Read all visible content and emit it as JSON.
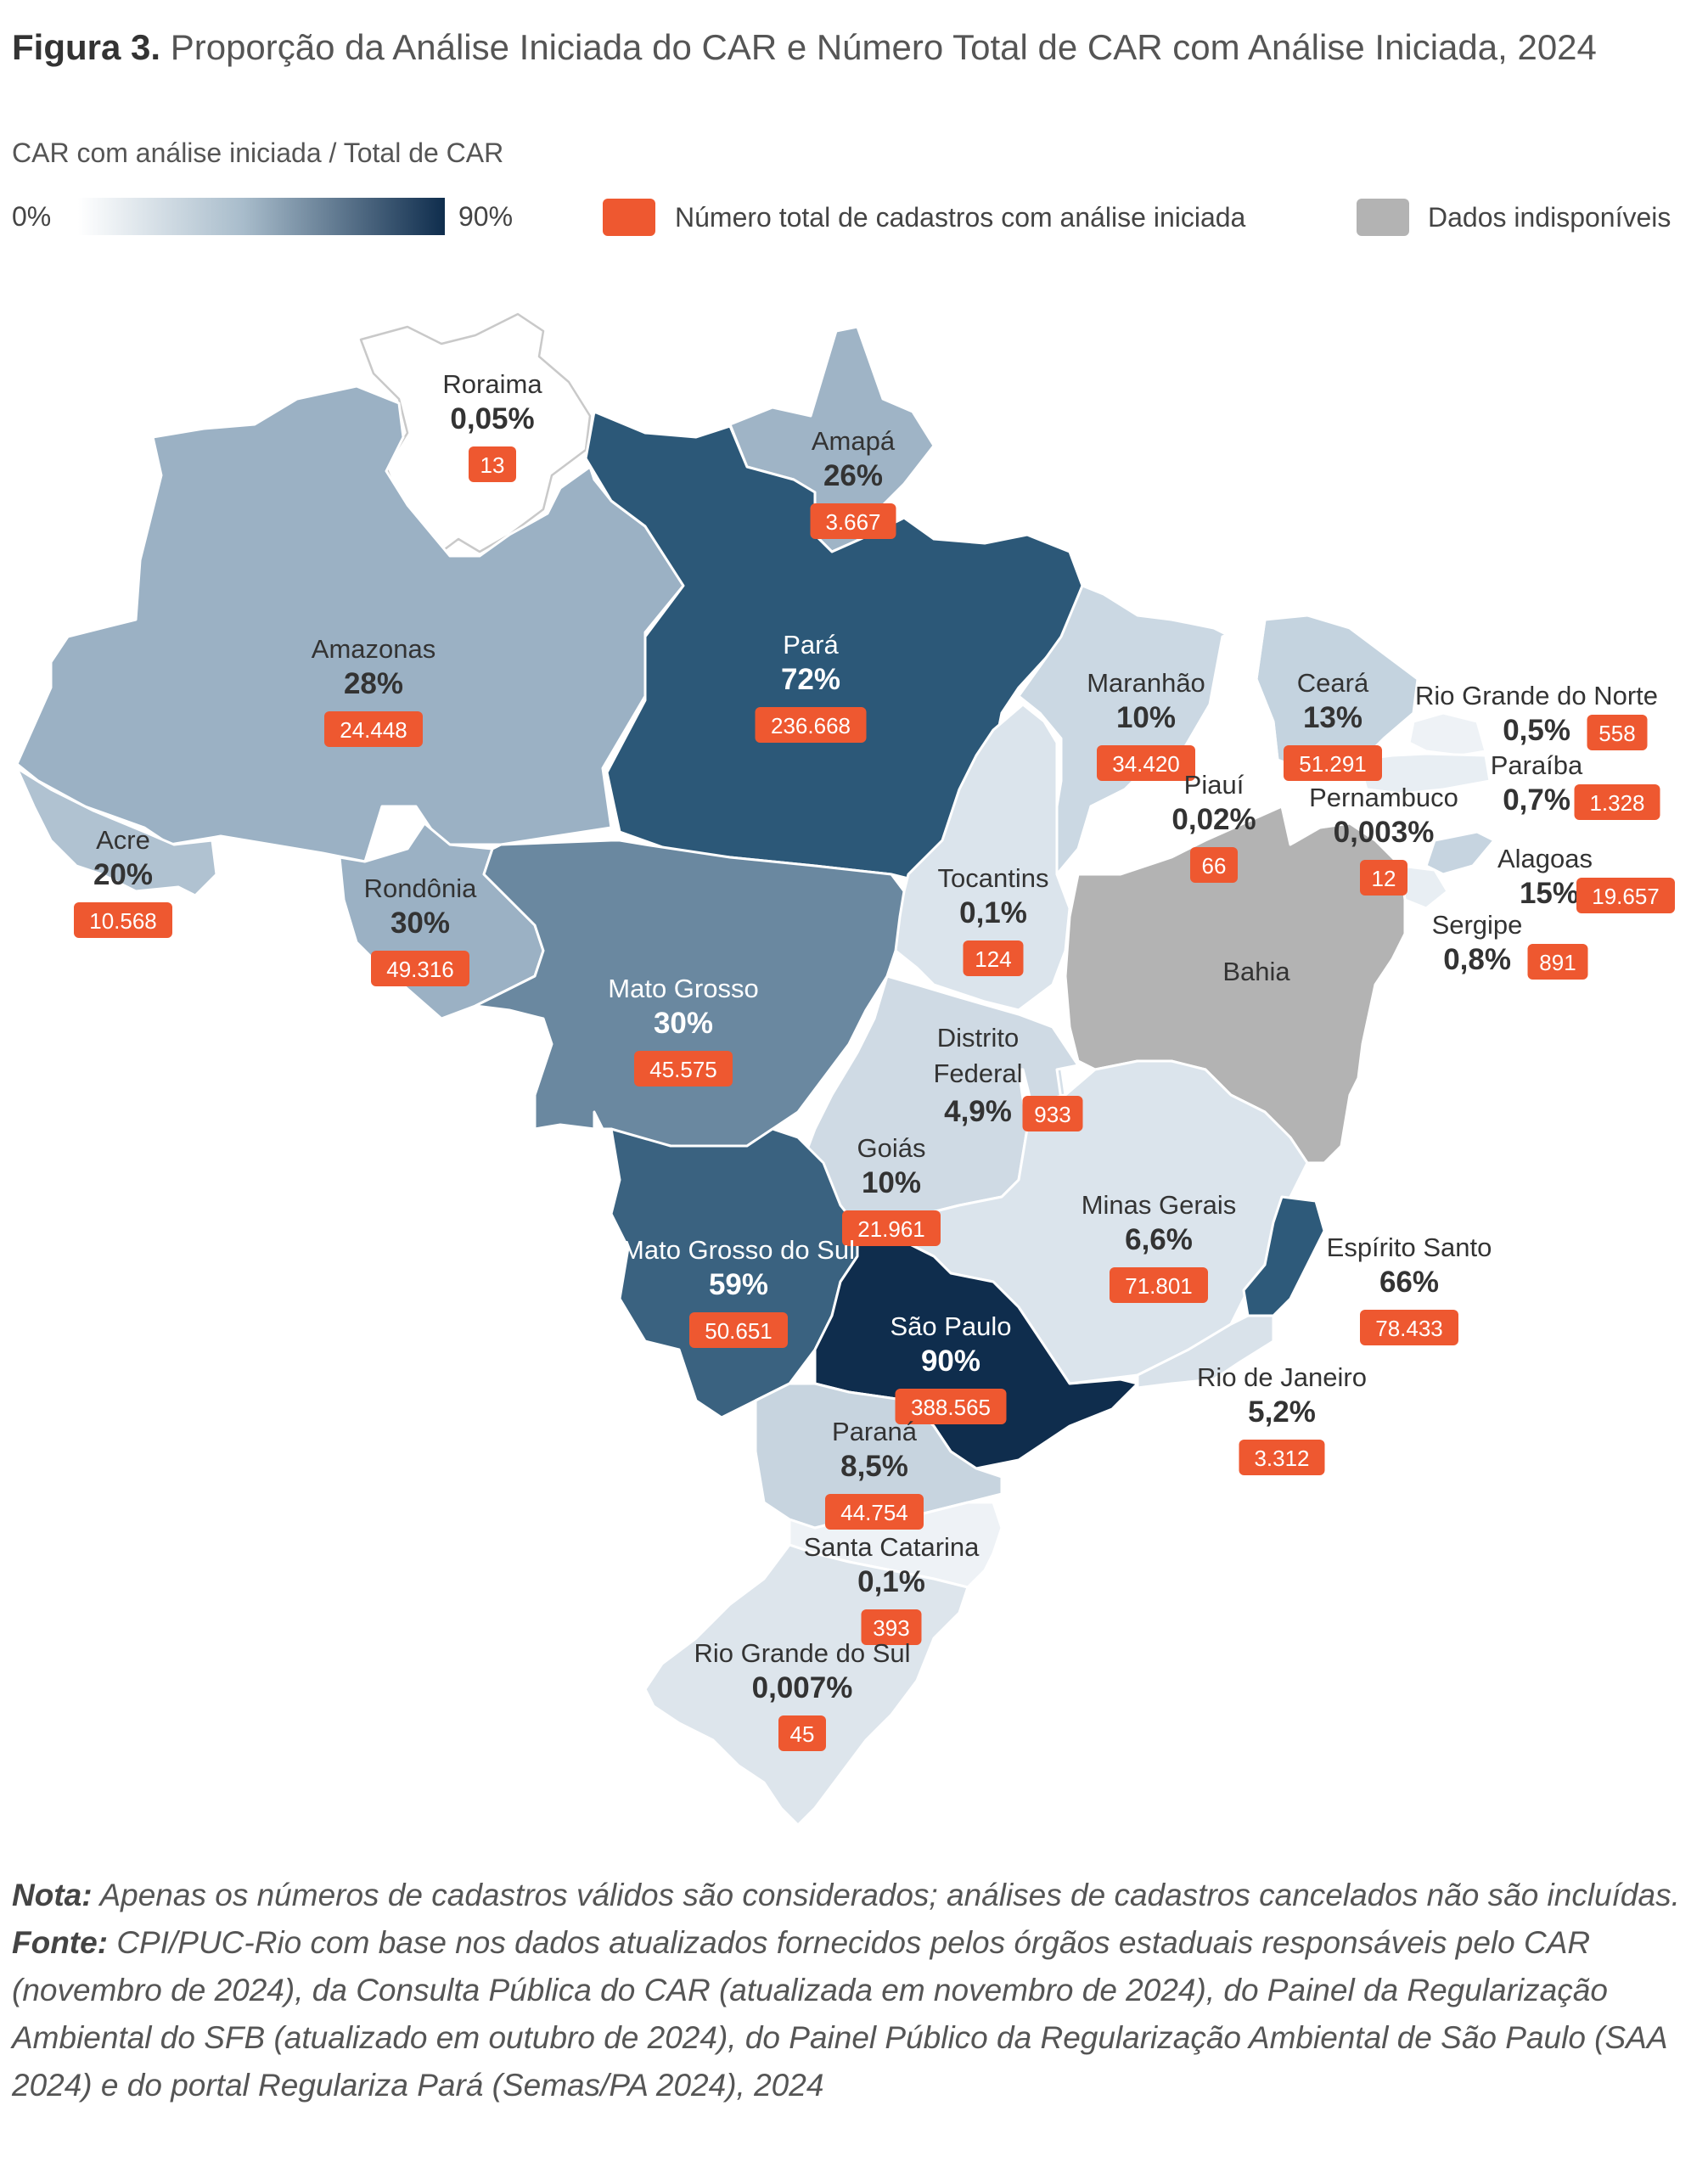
{
  "figure": {
    "title_bold": "Figura 3.",
    "title_rest": "Proporção da Análise Iniciada do CAR e Número Total de CAR com Análise Iniciada, 2024"
  },
  "legend": {
    "scale_label": "CAR com análise iniciada / Total de CAR",
    "min": "0%",
    "max": "90%",
    "orange_label": "Número total de cadastros com análise iniciada",
    "grey_label": "Dados indisponíveis",
    "colors": {
      "low": "#ffffff",
      "high": "#0f2d4d",
      "count_badge": "#ee5830",
      "unavailable": "#b3b3b3"
    }
  },
  "states": [
    {
      "id": "roraima",
      "name": "Roraima",
      "pct": "0,05%",
      "count": "13",
      "color": "#ffffff"
    },
    {
      "id": "amapa",
      "name": "Amapá",
      "pct": "26%",
      "count": "3.667",
      "color": "#9fb4c6"
    },
    {
      "id": "amazonas",
      "name": "Amazonas",
      "pct": "28%",
      "count": "24.448",
      "color": "#9bb1c4"
    },
    {
      "id": "para",
      "name": "Pará",
      "pct": "72%",
      "count": "236.668",
      "color": "#2c5878"
    },
    {
      "id": "maranhao",
      "name": "Maranhão",
      "pct": "10%",
      "count": "34.420",
      "color": "#cbd8e3"
    },
    {
      "id": "ceara",
      "name": "Ceará",
      "pct": "13%",
      "count": "51.291",
      "color": "#c4d3df"
    },
    {
      "id": "rn",
      "name": "Rio Grande do Norte",
      "pct": "0,5%",
      "count": "558",
      "color": "#eef2f6"
    },
    {
      "id": "paraiba",
      "name": "Paraíba",
      "pct": "0,7%",
      "count": "1.328",
      "color": "#e8eef3"
    },
    {
      "id": "piaui",
      "name": "Piauí",
      "pct": "0,02%",
      "count": "66",
      "color": "#ffffff"
    },
    {
      "id": "pernambuco",
      "name": "Pernambuco",
      "pct": "0,003%",
      "count": "12",
      "color": "#ffffff"
    },
    {
      "id": "alagoas",
      "name": "Alagoas",
      "pct": "15%",
      "count": "19.657",
      "color": "#c6d4e0"
    },
    {
      "id": "sergipe",
      "name": "Sergipe",
      "pct": "0,8%",
      "count": "891",
      "color": "#e8eef3"
    },
    {
      "id": "acre",
      "name": "Acre",
      "pct": "20%",
      "count": "10.568",
      "color": "#b0c2d1"
    },
    {
      "id": "rondonia",
      "name": "Rondônia",
      "pct": "30%",
      "count": "49.316",
      "color": "#9bb1c4"
    },
    {
      "id": "tocantins",
      "name": "Tocantins",
      "pct": "0,1%",
      "count": "124",
      "color": "#dbe4ec"
    },
    {
      "id": "bahia",
      "name": "Bahia",
      "pct": "",
      "count": "",
      "color": "#b3b3b3"
    },
    {
      "id": "mato_grosso",
      "name": "Mato Grosso",
      "pct": "30%",
      "count": "45.575",
      "color": "#6a88a0"
    },
    {
      "id": "df",
      "name": "Distrito Federal",
      "name_line1": "Distrito",
      "name_line2": "Federal",
      "pct": "4,9%",
      "count": "933",
      "color": "#d6e0e9"
    },
    {
      "id": "goias",
      "name": "Goiás",
      "pct": "10%",
      "count": "21.961",
      "color": "#cfdae4"
    },
    {
      "id": "minas",
      "name": "Minas Gerais",
      "pct": "6,6%",
      "count": "71.801",
      "color": "#dbe4ec"
    },
    {
      "id": "espirito_santo",
      "name": "Espírito Santo",
      "pct": "66%",
      "count": "78.433",
      "color": "#2e5a7a"
    },
    {
      "id": "ms",
      "name": "Mato Grosso do Sul",
      "pct": "59%",
      "count": "50.651",
      "color": "#3a6280"
    },
    {
      "id": "sao_paulo",
      "name": "São Paulo",
      "pct": "90%",
      "count": "388.565",
      "color": "#0f2d4d"
    },
    {
      "id": "rio",
      "name": "Rio de Janeiro",
      "pct": "5,2%",
      "count": "3.312",
      "color": "#d9e2ea"
    },
    {
      "id": "parana",
      "name": "Paraná",
      "pct": "8,5%",
      "count": "44.754",
      "color": "#c7d4df"
    },
    {
      "id": "sc",
      "name": "Santa Catarina",
      "pct": "0,1%",
      "count": "393",
      "color": "#eef2f6"
    },
    {
      "id": "rs",
      "name": "Rio Grande do Sul",
      "pct": "0,007%",
      "count": "45",
      "color": "#dde5ec"
    }
  ],
  "notes": {
    "nota_label": "Nota:",
    "nota_text": "Apenas os números de cadastros válidos são considerados; análises de cadastros cancelados não são incluídas.",
    "fonte_label": "Fonte:",
    "fonte_text": "CPI/PUC-Rio com base nos dados atualizados fornecidos pelos órgãos estaduais responsáveis pelo CAR (novembro de 2024), da Consulta Pública do CAR (atualizada em novembro de 2024), do Painel da Regularização Ambiental do SFB (atualizado em outubro de 2024), do Painel Público da Regularização Ambiental de São Paulo (SAA 2024) e do portal Regulariza Pará (Semas/PA 2024), 2024"
  }
}
